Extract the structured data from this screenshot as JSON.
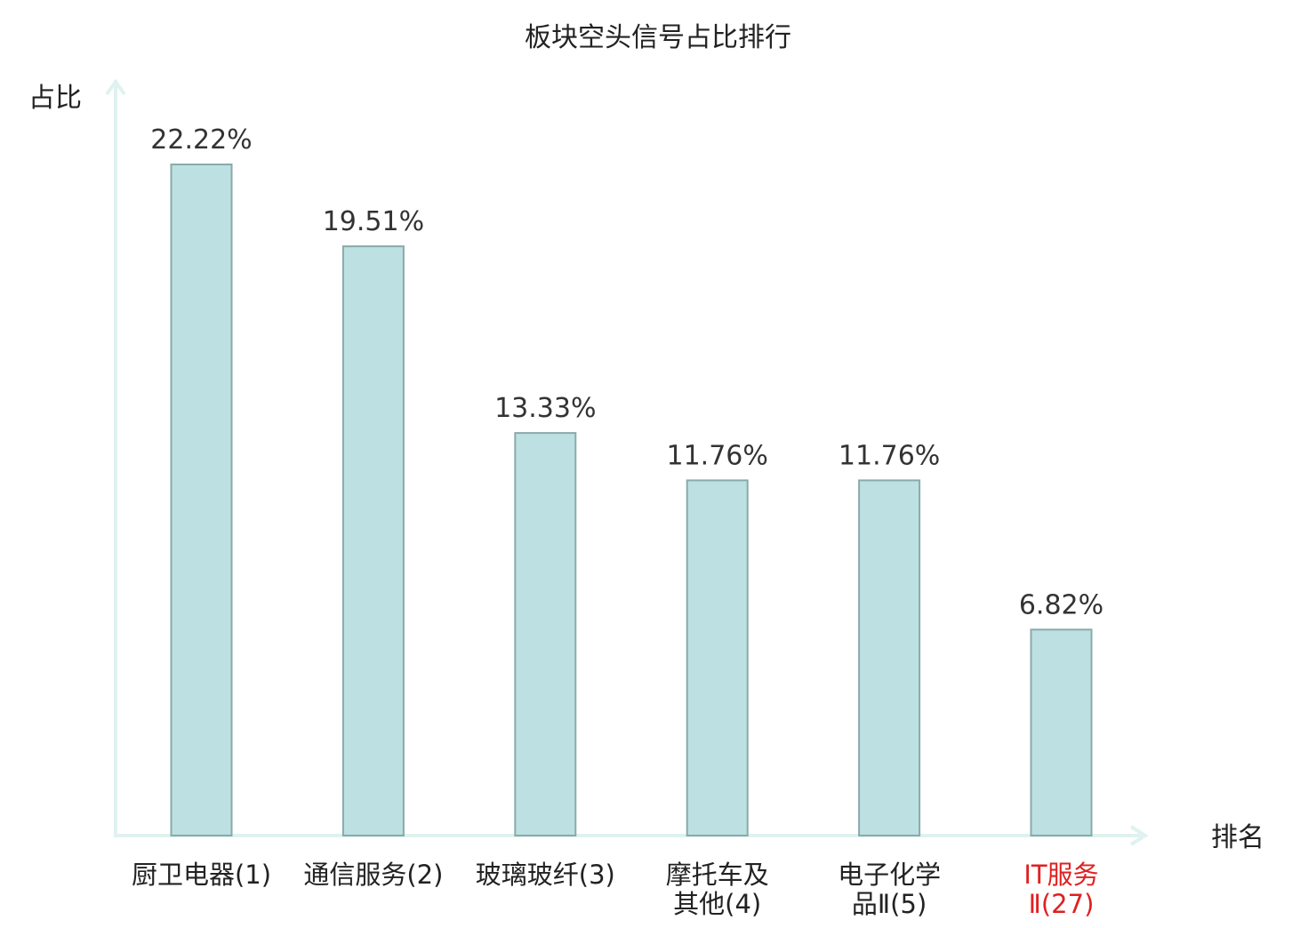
{
  "chart_data": {
    "type": "bar",
    "title": "板块空头信号占比排行",
    "ylabel": "占比",
    "xlabel": "排名",
    "categories": [
      [
        "厨卫电器(1)"
      ],
      [
        "通信服务(2)"
      ],
      [
        "玻璃玻纤(3)"
      ],
      [
        "摩托车及",
        "其他(4)"
      ],
      [
        "电子化学",
        "品Ⅱ(5)"
      ],
      [
        "IT服务",
        "Ⅱ(27)"
      ]
    ],
    "values": [
      22.22,
      19.51,
      13.33,
      11.76,
      11.76,
      6.82
    ],
    "value_labels": [
      "22.22%",
      "19.51%",
      "13.33%",
      "11.76%",
      "11.76%",
      "6.82%"
    ],
    "highlighted_category_index": 5,
    "ylim": [
      0,
      24.5
    ],
    "grid": false,
    "legend": "none",
    "colors": {
      "bar_fill": "#bde0e3",
      "bar_stroke": "#8aaaa8",
      "axis": "#dff2f0",
      "text": "#333333",
      "highlight_text": "#e02020"
    }
  }
}
